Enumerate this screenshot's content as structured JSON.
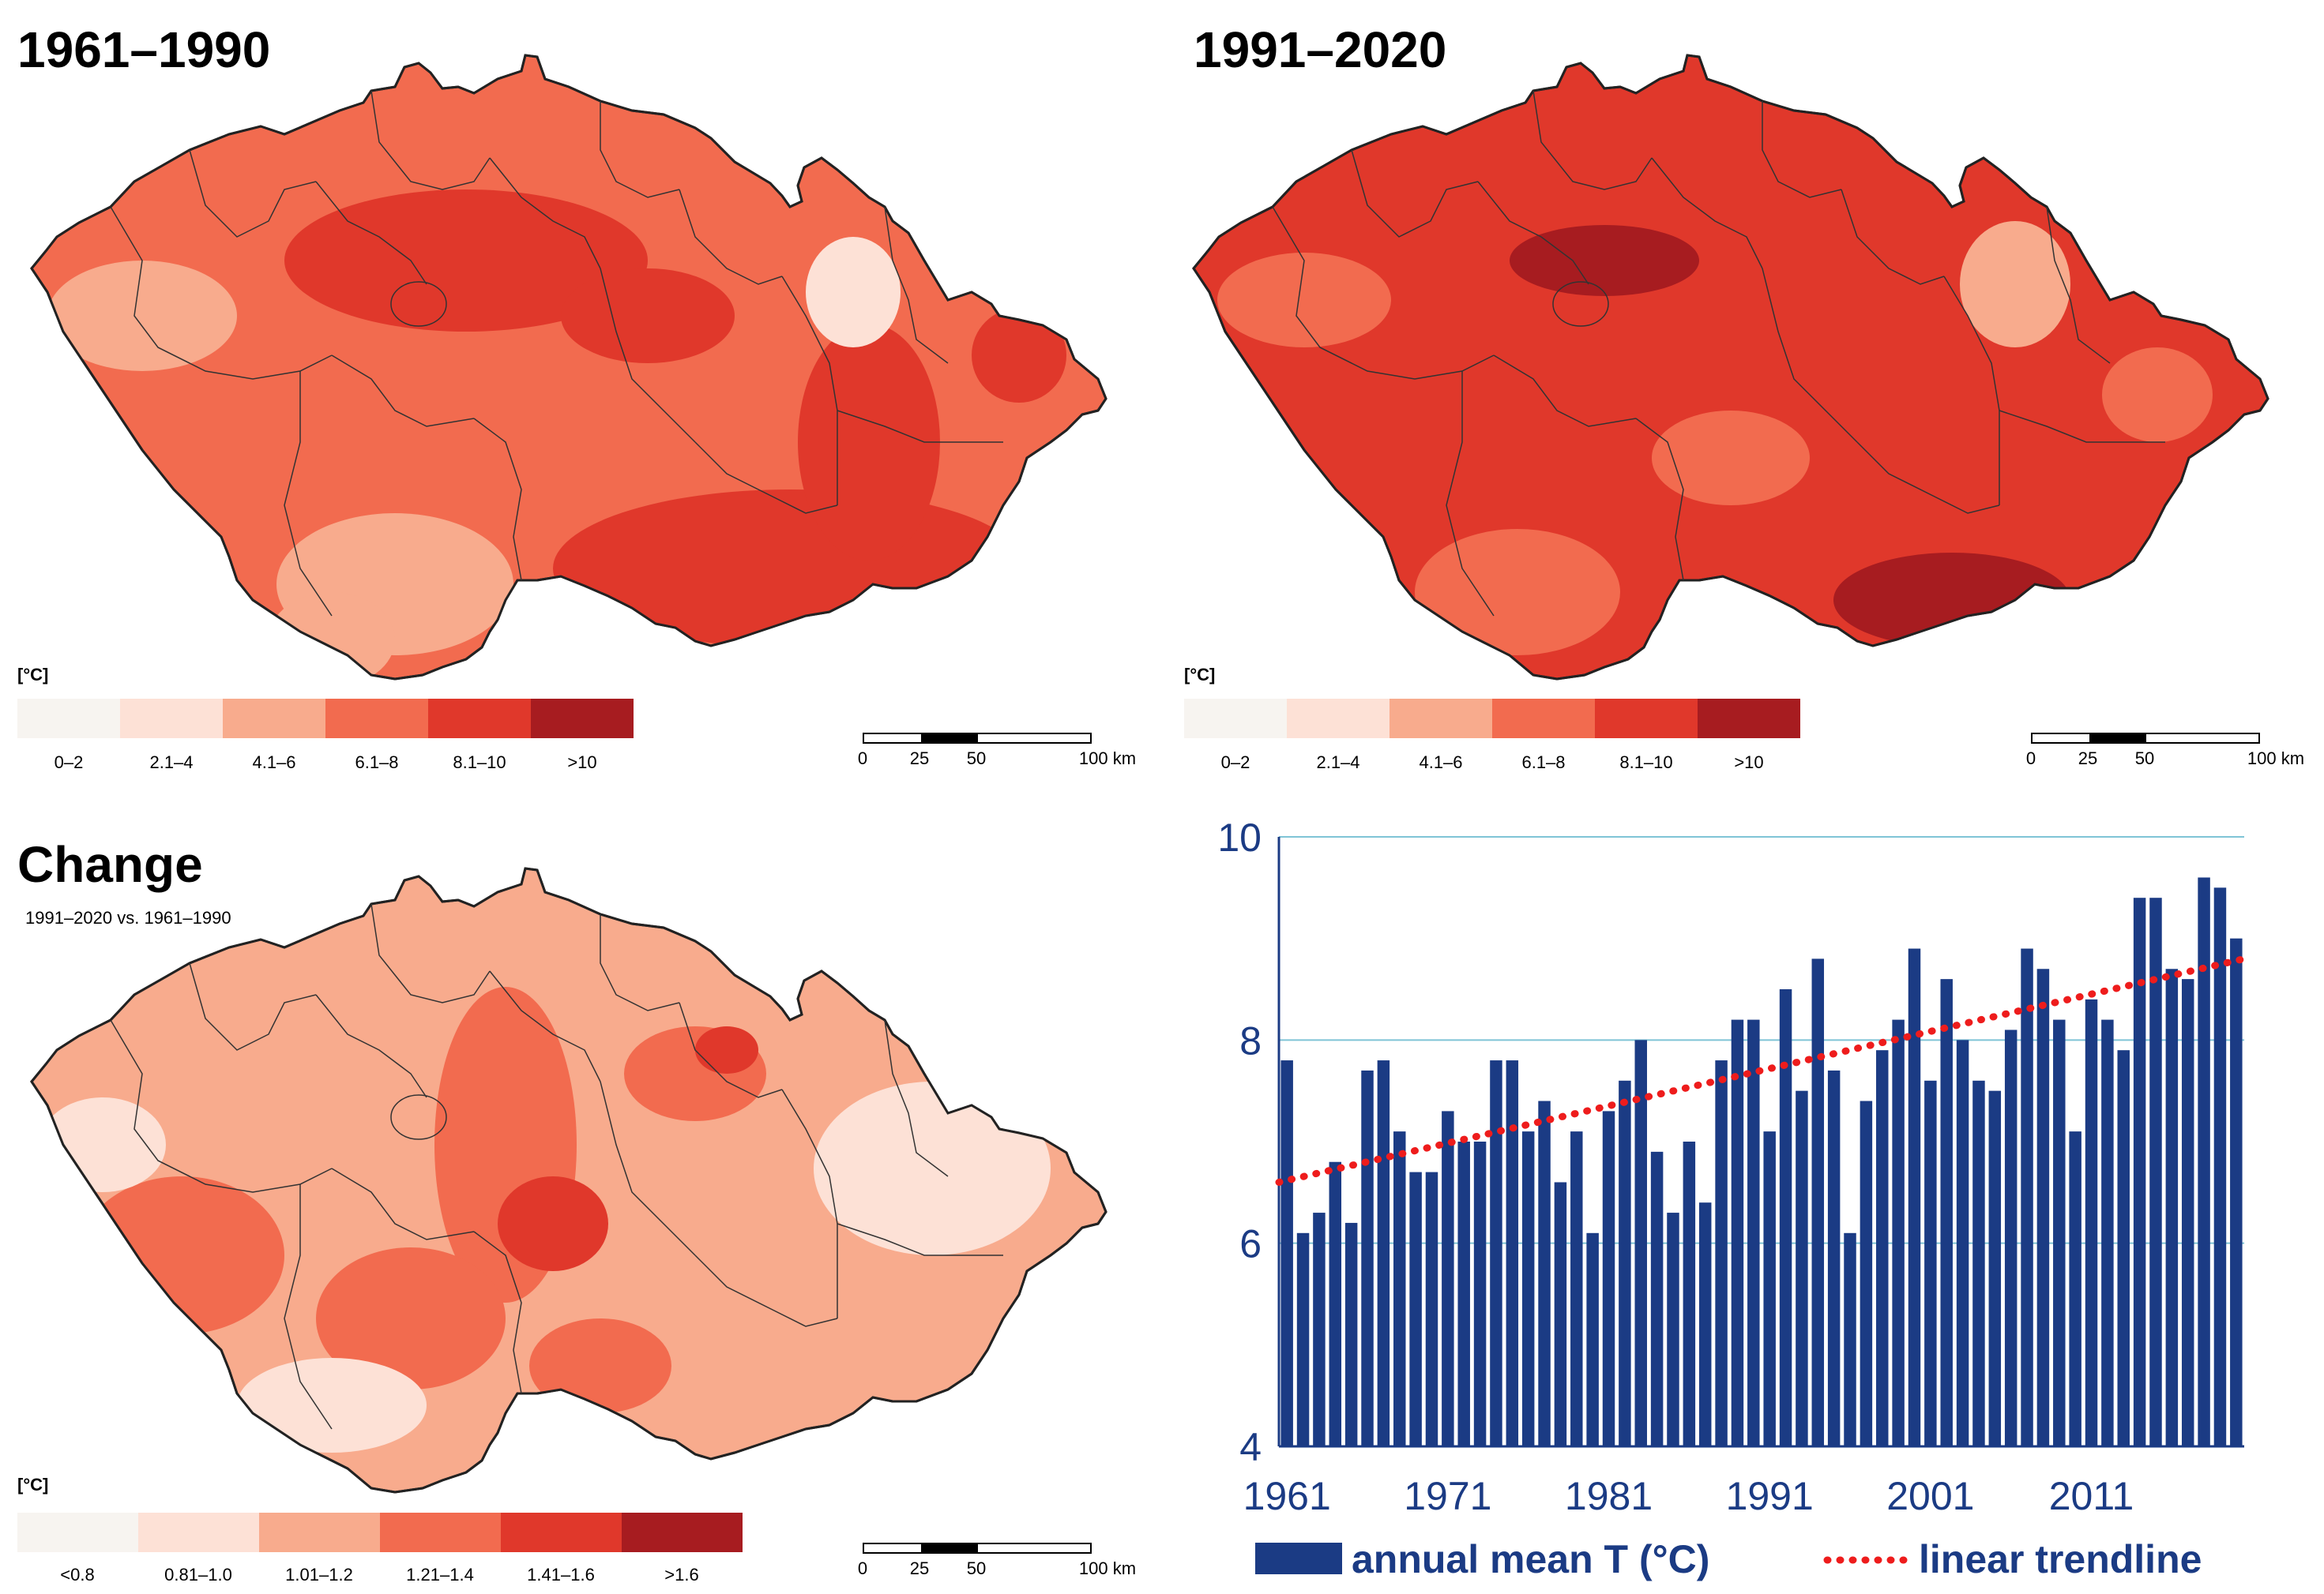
{
  "maps": [
    {
      "title": "1961–1990",
      "unit": "[°C]",
      "legend": [
        {
          "label": "0–2",
          "color": "#f7f4f0"
        },
        {
          "label": "2.1–4",
          "color": "#fde1d6"
        },
        {
          "label": "4.1–6",
          "color": "#f8ab8d"
        },
        {
          "label": "6.1–8",
          "color": "#f26b4f"
        },
        {
          "label": "8.1–10",
          "color": "#e0382b"
        },
        {
          "label": ">10",
          "color": "#a71c20"
        }
      ],
      "scalebar": {
        "labels": [
          "0",
          "25",
          "50",
          "100 km"
        ]
      }
    },
    {
      "title": "1991–2020",
      "unit": "[°C]",
      "legend": [
        {
          "label": "0–2",
          "color": "#f7f4f0"
        },
        {
          "label": "2.1–4",
          "color": "#fde1d6"
        },
        {
          "label": "4.1–6",
          "color": "#f8ab8d"
        },
        {
          "label": "6.1–8",
          "color": "#f26b4f"
        },
        {
          "label": "8.1–10",
          "color": "#e0382b"
        },
        {
          "label": ">10",
          "color": "#a71c20"
        }
      ],
      "scalebar": {
        "labels": [
          "0",
          "25",
          "50",
          "100 km"
        ]
      }
    },
    {
      "title": "Change",
      "subtitle": "1991–2020 vs. 1961–1990",
      "unit": "[°C]",
      "legend": [
        {
          "label": "<0.8",
          "color": "#f7f4f0"
        },
        {
          "label": "0.81–1.0",
          "color": "#fde1d6"
        },
        {
          "label": "1.01–1.2",
          "color": "#f8ab8d"
        },
        {
          "label": "1.21–1.4",
          "color": "#f26b4f"
        },
        {
          "label": "1.41–1.6",
          "color": "#e0382b"
        },
        {
          "label": ">1.6",
          "color": "#a71c20"
        }
      ],
      "scalebar": {
        "labels": [
          "0",
          "25",
          "50",
          "100 km"
        ]
      }
    }
  ],
  "colors": {
    "bar": "#1b3b84",
    "trend": "#ee1c1c",
    "grid": "#7fc4d6",
    "axis_text": "#1b3b84",
    "border": "#333333"
  },
  "chart_data": {
    "type": "bar",
    "title": "",
    "xlabel": "",
    "ylabel": "",
    "ylim": [
      4,
      10
    ],
    "yticks": [
      "4",
      "6",
      "8",
      "10"
    ],
    "xticks": [
      "1961",
      "1971",
      "1981",
      "1991",
      "2001",
      "2011"
    ],
    "x": [
      1961,
      1962,
      1963,
      1964,
      1965,
      1966,
      1967,
      1968,
      1969,
      1970,
      1971,
      1972,
      1973,
      1974,
      1975,
      1976,
      1977,
      1978,
      1979,
      1980,
      1981,
      1982,
      1983,
      1984,
      1985,
      1986,
      1987,
      1988,
      1989,
      1990,
      1991,
      1992,
      1993,
      1994,
      1995,
      1996,
      1997,
      1998,
      1999,
      2000,
      2001,
      2002,
      2003,
      2004,
      2005,
      2006,
      2007,
      2008,
      2009,
      2010,
      2011,
      2012,
      2013,
      2014,
      2015,
      2016,
      2017,
      2018,
      2019,
      2020
    ],
    "series": [
      {
        "name": "annual mean T (°C)",
        "values": [
          7.8,
          6.1,
          6.3,
          6.8,
          6.2,
          7.7,
          7.8,
          7.1,
          6.7,
          6.7,
          7.3,
          7.0,
          7.0,
          7.8,
          7.8,
          7.1,
          7.4,
          6.6,
          7.1,
          6.1,
          7.3,
          7.6,
          8.0,
          6.9,
          6.3,
          7.0,
          6.4,
          7.8,
          8.2,
          8.2,
          7.1,
          8.5,
          7.5,
          8.8,
          7.7,
          6.1,
          7.4,
          7.9,
          8.2,
          8.9,
          7.6,
          8.6,
          8.0,
          7.6,
          7.5,
          8.1,
          8.9,
          8.7,
          8.2,
          7.1,
          8.4,
          8.2,
          7.9,
          9.4,
          9.4,
          8.7,
          8.6,
          9.6,
          9.5,
          9.0
        ]
      },
      {
        "name": "linear trendline",
        "type": "line",
        "values_endpoints": [
          [
            1961,
            6.6
          ],
          [
            2020,
            8.8
          ]
        ]
      }
    ],
    "legend": [
      "annual mean T (°C)",
      "linear trendline"
    ]
  }
}
